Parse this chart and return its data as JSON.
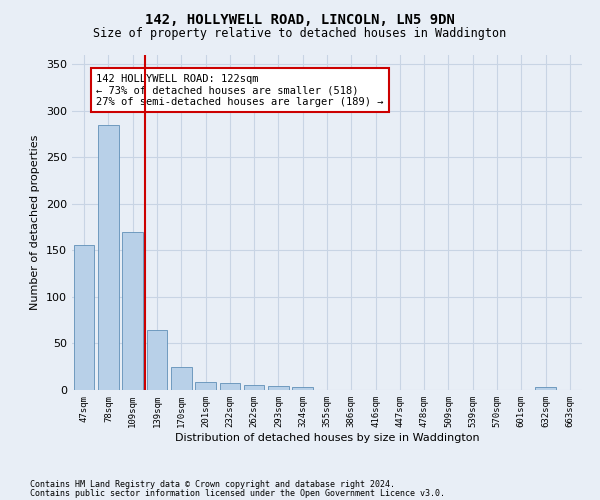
{
  "title1": "142, HOLLYWELL ROAD, LINCOLN, LN5 9DN",
  "title2": "Size of property relative to detached houses in Waddington",
  "xlabel": "Distribution of detached houses by size in Waddington",
  "ylabel": "Number of detached properties",
  "categories": [
    "47sqm",
    "78sqm",
    "109sqm",
    "139sqm",
    "170sqm",
    "201sqm",
    "232sqm",
    "262sqm",
    "293sqm",
    "324sqm",
    "355sqm",
    "386sqm",
    "416sqm",
    "447sqm",
    "478sqm",
    "509sqm",
    "539sqm",
    "570sqm",
    "601sqm",
    "632sqm",
    "663sqm"
  ],
  "values": [
    156,
    285,
    170,
    65,
    25,
    9,
    7,
    5,
    4,
    3,
    0,
    0,
    0,
    0,
    0,
    0,
    0,
    0,
    0,
    3,
    0
  ],
  "bar_color": "#b8d0e8",
  "bar_edge_color": "#6090b8",
  "grid_color": "#c8d4e4",
  "background_color": "#e8eef6",
  "vline_x": 2.5,
  "vline_color": "#cc0000",
  "annotation_text": "142 HOLLYWELL ROAD: 122sqm\n← 73% of detached houses are smaller (518)\n27% of semi-detached houses are larger (189) →",
  "annotation_box_color": "#ffffff",
  "annotation_box_edge": "#cc0000",
  "ylim": [
    0,
    360
  ],
  "yticks": [
    0,
    50,
    100,
    150,
    200,
    250,
    300,
    350
  ],
  "footnote1": "Contains HM Land Registry data © Crown copyright and database right 2024.",
  "footnote2": "Contains public sector information licensed under the Open Government Licence v3.0."
}
